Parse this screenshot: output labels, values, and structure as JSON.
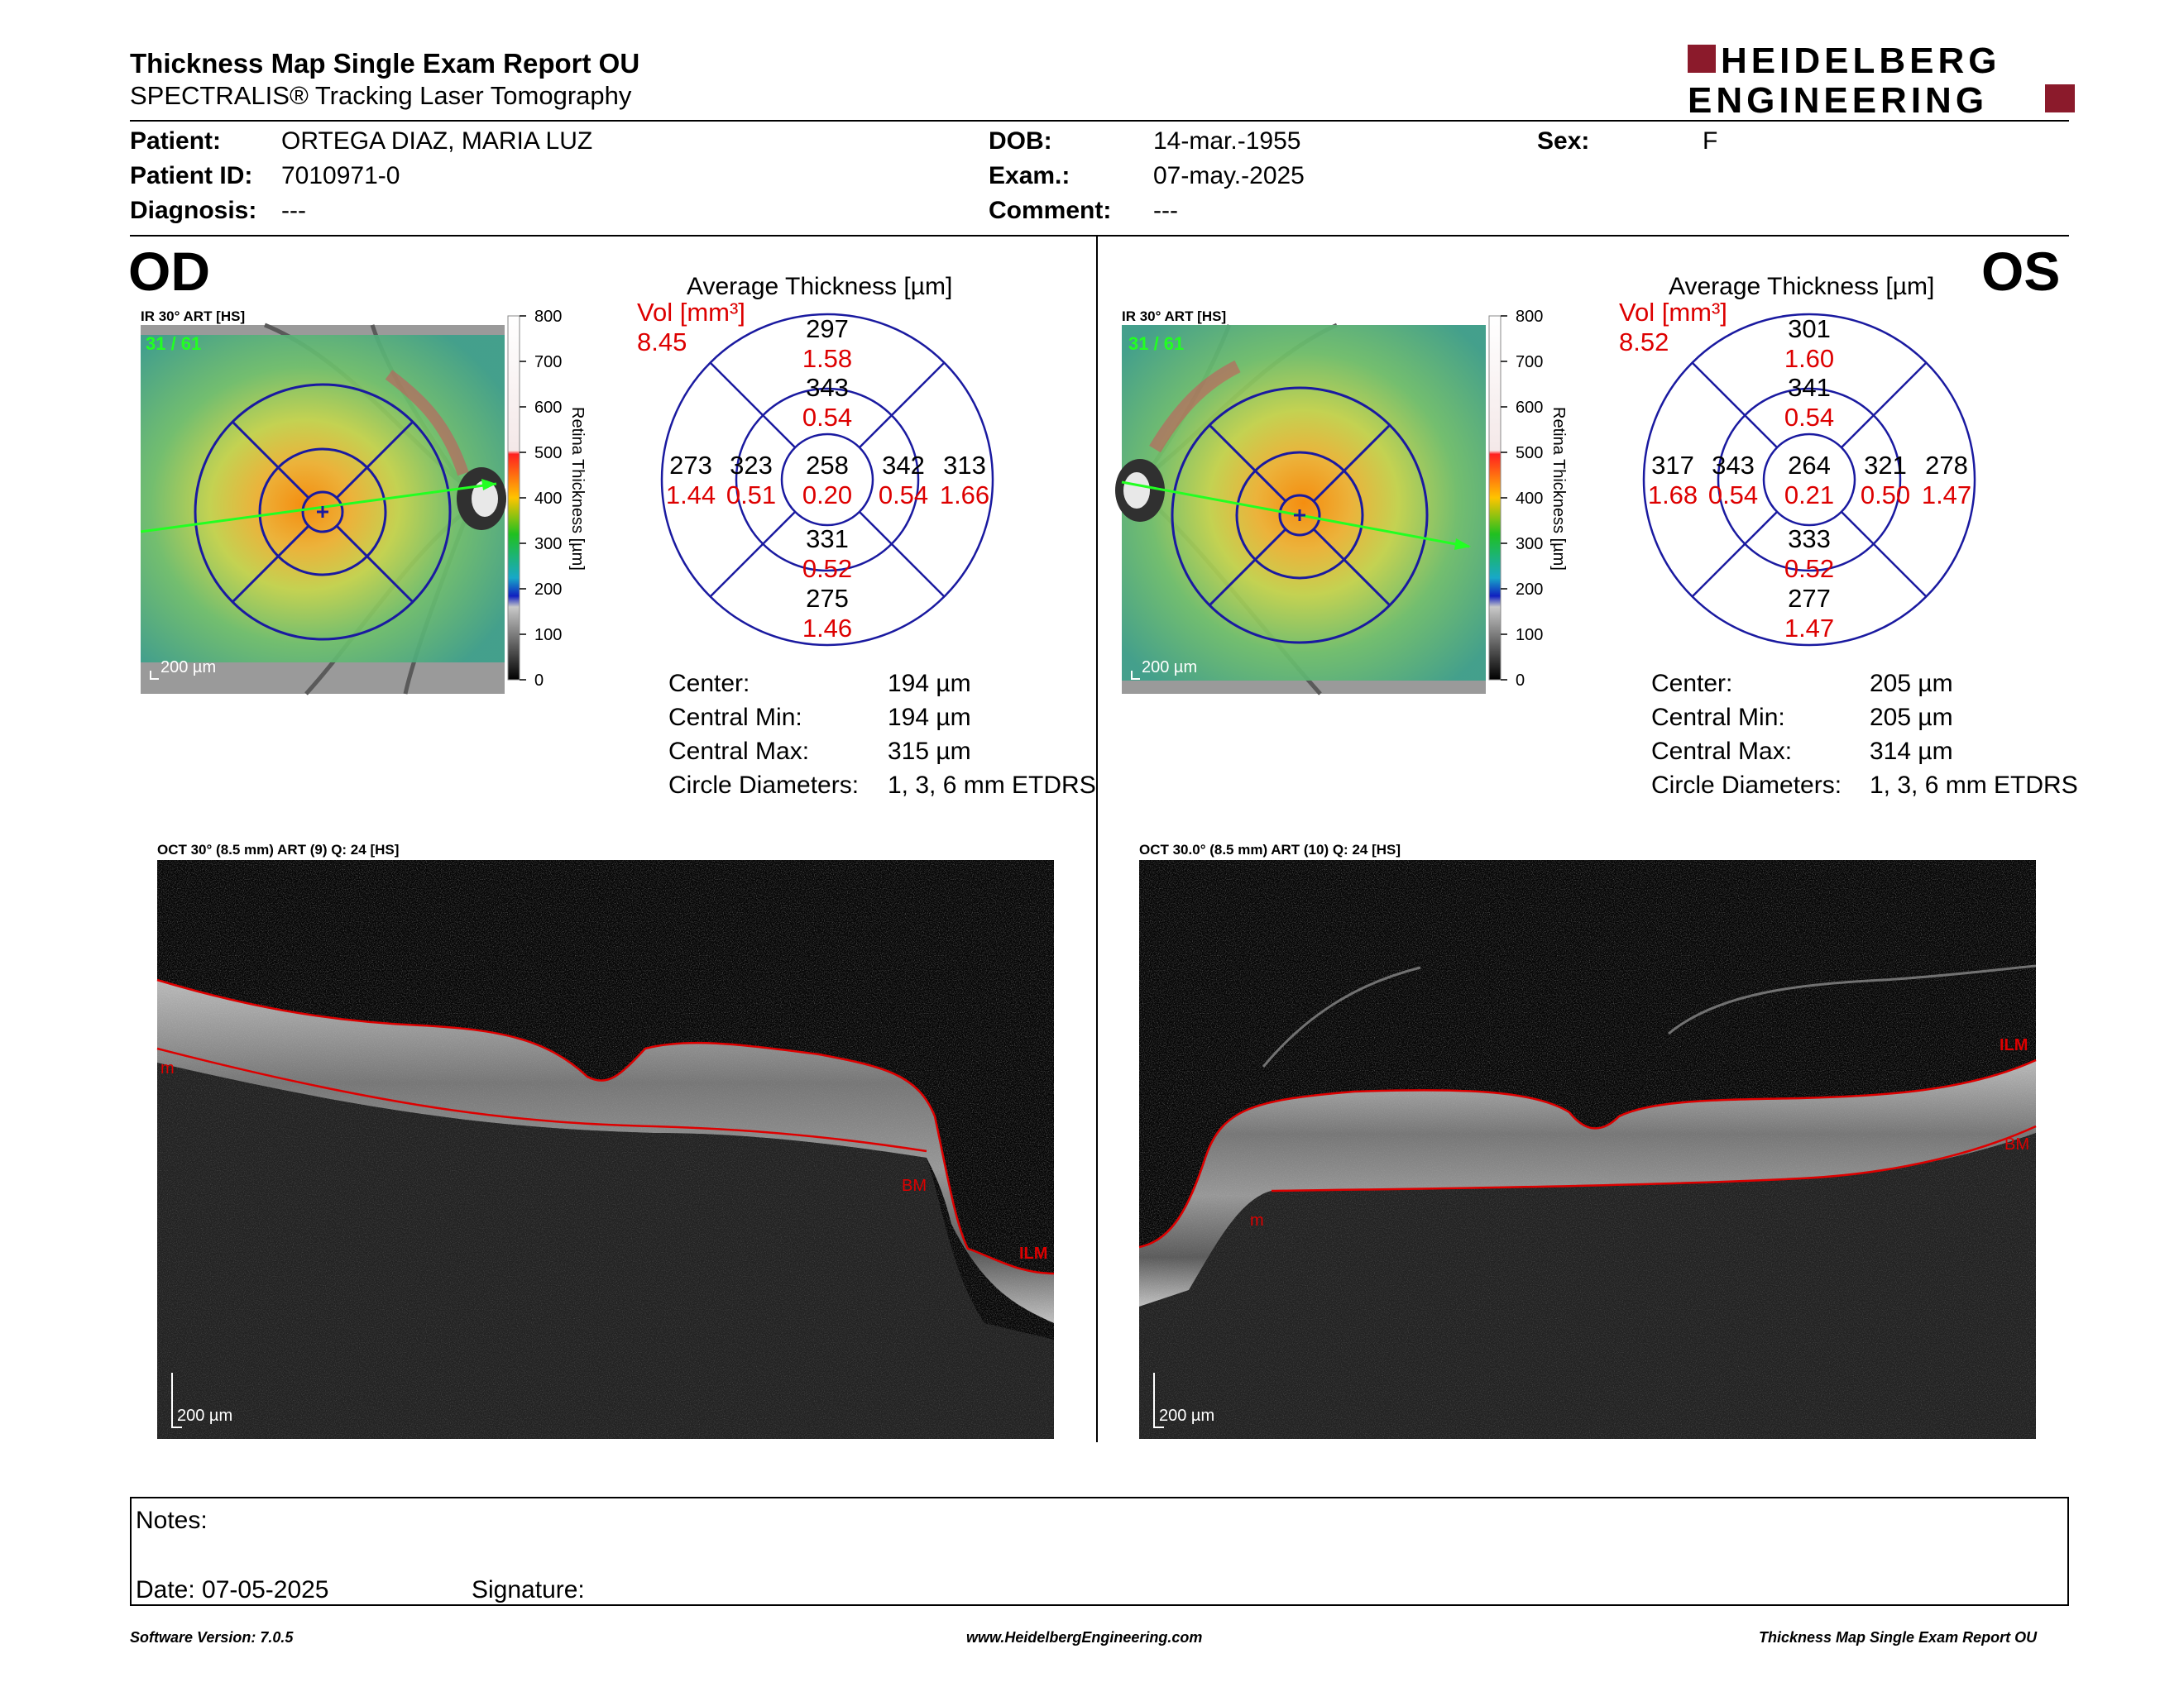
{
  "header": {
    "title": "Thickness Map Single Exam Report OU",
    "subtitle": "SPECTRALIS® Tracking Laser Tomography",
    "logo_line1": "HEIDELBERG",
    "logo_line2": "ENGINEERING"
  },
  "patient": {
    "patient_label": "Patient:",
    "patient_value": "ORTEGA DIAZ, MARIA LUZ",
    "id_label": "Patient ID:",
    "id_value": "7010971-0",
    "diagnosis_label": "Diagnosis:",
    "diagnosis_value": "---",
    "dob_label": "DOB:",
    "dob_value": "14-mar.-1955",
    "exam_label": "Exam.:",
    "exam_value": "07-may.-2025",
    "comment_label": "Comment:",
    "comment_value": "---",
    "sex_label": "Sex:",
    "sex_value": "F"
  },
  "colorbar": {
    "ticks": [
      "800",
      "700",
      "600",
      "500",
      "400",
      "300",
      "200",
      "100",
      "0"
    ],
    "label": "Retina Thickness [µm]"
  },
  "od": {
    "eye": "OD",
    "fundus_label": "IR 30° ART [HS]",
    "frame": "31 / 61",
    "scale": "200 µm",
    "avg_title": "Average Thickness [µm]",
    "vol_label": "Vol [mm³]",
    "vol_value": "8.45",
    "grid": {
      "center": [
        "258",
        "0.20"
      ],
      "inner_sup": [
        "343",
        "0.54"
      ],
      "inner_inf": [
        "331",
        "0.52"
      ],
      "inner_left": [
        "323",
        "0.51"
      ],
      "inner_right": [
        "342",
        "0.54"
      ],
      "outer_sup": [
        "297",
        "1.58"
      ],
      "outer_inf": [
        "275",
        "1.46"
      ],
      "outer_left": [
        "273",
        "1.44"
      ],
      "outer_right": [
        "313",
        "1.66"
      ]
    },
    "stats": [
      {
        "label": "Center:",
        "value": "194 µm"
      },
      {
        "label": "Central Min:",
        "value": "194 µm"
      },
      {
        "label": "Central Max:",
        "value": "315 µm"
      },
      {
        "label": "Circle Diameters:",
        "value": "1, 3, 6 mm ETDRS"
      }
    ],
    "oct_label": "OCT 30° (8.5 mm) ART (9) Q: 24 [HS]",
    "oct_scale": "200 µm",
    "layer_labels": [
      "m",
      "BM",
      "ILM"
    ]
  },
  "os": {
    "eye": "OS",
    "fundus_label": "IR 30° ART [HS]",
    "frame": "31 / 61",
    "scale": "200 µm",
    "avg_title": "Average Thickness [µm]",
    "vol_label": "Vol [mm³]",
    "vol_value": "8.52",
    "grid": {
      "center": [
        "264",
        "0.21"
      ],
      "inner_sup": [
        "341",
        "0.54"
      ],
      "inner_inf": [
        "333",
        "0.52"
      ],
      "inner_left": [
        "343",
        "0.54"
      ],
      "inner_right": [
        "321",
        "0.50"
      ],
      "outer_sup": [
        "301",
        "1.60"
      ],
      "outer_inf": [
        "277",
        "1.47"
      ],
      "outer_left": [
        "317",
        "1.68"
      ],
      "outer_right": [
        "278",
        "1.47"
      ]
    },
    "stats": [
      {
        "label": "Center:",
        "value": "205 µm"
      },
      {
        "label": "Central Min:",
        "value": "205 µm"
      },
      {
        "label": "Central Max:",
        "value": "314 µm"
      },
      {
        "label": "Circle Diameters:",
        "value": "1, 3, 6 mm ETDRS"
      }
    ],
    "oct_label": "OCT 30.0° (8.5 mm) ART (10) Q: 24 [HS]",
    "oct_scale": "200 µm",
    "layer_labels": [
      "ILM",
      "BM",
      "m"
    ]
  },
  "notes": {
    "notes_label": "Notes:",
    "date_label": "Date: 07-05-2025",
    "signature_label": "Signature:"
  },
  "footer": {
    "left": "Software Version: 7.0.5",
    "center": "www.HeidelbergEngineering.com",
    "right": "Thickness Map Single Exam Report OU"
  },
  "colors": {
    "accent_red": "#8b1a2b",
    "value_red": "#dd0000",
    "grid_blue": "#1a1aa0"
  }
}
